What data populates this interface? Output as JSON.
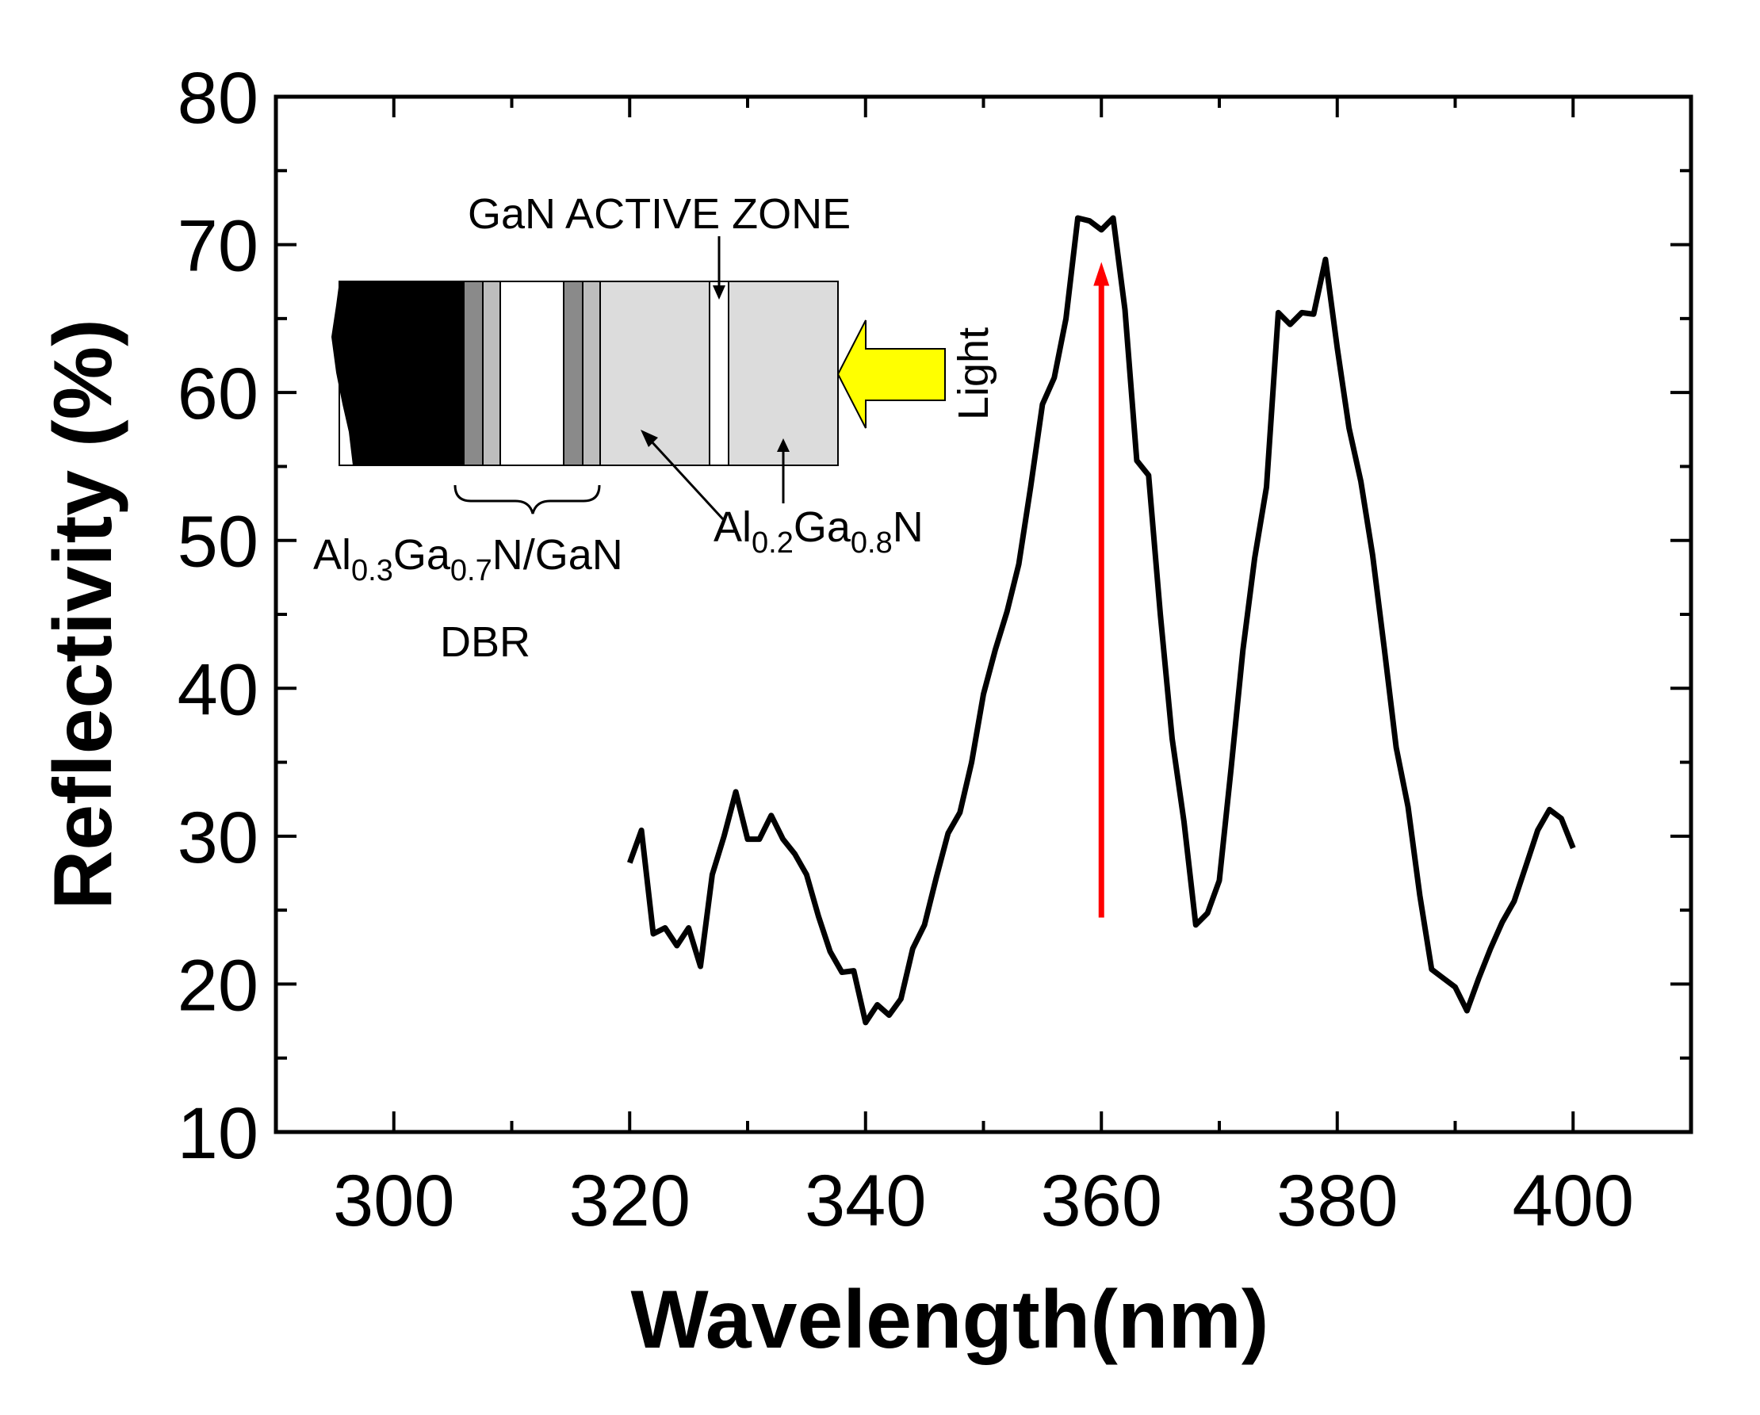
{
  "chart_data": {
    "type": "line",
    "xlabel": "Wavelength(nm)",
    "ylabel": "Reflectivity  (%)",
    "xlim": [
      290,
      410
    ],
    "ylim": [
      10,
      80
    ],
    "xticks": [
      300,
      320,
      340,
      360,
      380,
      400
    ],
    "yticks": [
      10,
      20,
      30,
      40,
      50,
      60,
      70,
      80
    ],
    "grid": false,
    "series": [
      {
        "name": "Reflectivity",
        "color": "#000000",
        "x": [
          320,
          321,
          322,
          323,
          324,
          325,
          326,
          327,
          328,
          329,
          330,
          331,
          332,
          333,
          334,
          335,
          336,
          337,
          338,
          339,
          340,
          341,
          342,
          343,
          344,
          345,
          346,
          347,
          348,
          349,
          350,
          351,
          352,
          353,
          354,
          355,
          356,
          357,
          358,
          359,
          360,
          361,
          362,
          363,
          364,
          365,
          366,
          367,
          368,
          369,
          370,
          371,
          372,
          373,
          374,
          375,
          376,
          377,
          378,
          379,
          380,
          381,
          382,
          383,
          384,
          385,
          386,
          387,
          388,
          389,
          390,
          391,
          392,
          393,
          394,
          395,
          396,
          397,
          398,
          399,
          400
        ],
        "y": [
          28.2,
          30.4,
          23.4,
          23.8,
          22.6,
          23.8,
          21.2,
          27.4,
          30.0,
          33.0,
          29.8,
          29.8,
          31.4,
          29.8,
          28.8,
          27.4,
          24.6,
          22.2,
          20.8,
          20.9,
          17.4,
          18.6,
          17.9,
          19.0,
          22.4,
          24.0,
          27.2,
          30.2,
          31.6,
          35.0,
          39.6,
          42.6,
          45.2,
          48.4,
          53.6,
          59.2,
          61.0,
          65.0,
          71.8,
          71.6,
          71.0,
          71.8,
          65.6,
          55.4,
          54.4,
          45.0,
          36.6,
          31.0,
          24.0,
          24.8,
          27.0,
          34.6,
          42.6,
          48.8,
          53.6,
          65.4,
          64.6,
          65.4,
          65.3,
          69.0,
          63.0,
          57.6,
          54.0,
          49.0,
          42.6,
          36.0,
          32.0,
          26.0,
          21.0,
          20.4,
          19.8,
          18.2,
          20.4,
          22.4,
          24.2,
          25.6,
          28.0,
          30.4,
          31.8,
          31.2,
          29.2
        ]
      }
    ],
    "annotations": {
      "arrow": {
        "x": 360,
        "y_start": 24.5,
        "y_end": 68.5,
        "color": "#ff0000"
      }
    }
  },
  "inset": {
    "active_zone_label": "GaN ACTIVE ZONE",
    "light_label": "Light",
    "dbr_label_main": "Al",
    "dbr_sub1": "0.3",
    "dbr_mid": "Ga",
    "dbr_sub2": "0.7",
    "dbr_tail": "N/GaN",
    "dbr_word": "DBR",
    "cladding_main": "Al",
    "cladding_sub1": "0.2",
    "cladding_mid": "Ga",
    "cladding_sub2": "0.8",
    "cladding_tail": "N",
    "colors": {
      "substrate": "#000000",
      "dbr_dark": "#8a8a8a",
      "dbr_mid": "#bdbdbd",
      "cladding": "#dcdcdc",
      "light_arrow": "#ffff00"
    }
  }
}
